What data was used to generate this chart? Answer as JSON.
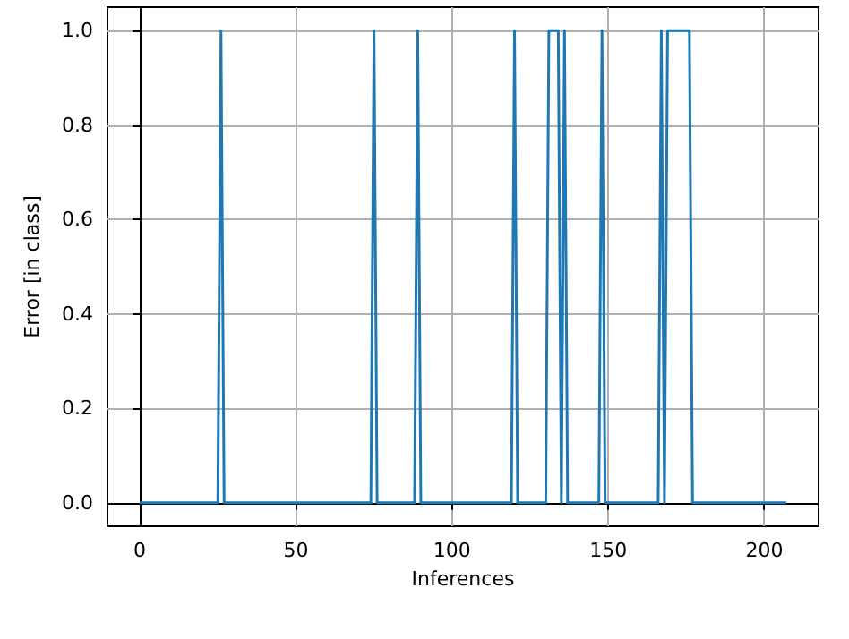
{
  "chart_data": {
    "type": "line",
    "xlabel": "Inferences",
    "ylabel": "Error [in class]",
    "x": [
      0,
      25,
      26,
      27,
      74,
      75,
      76,
      88,
      89,
      90,
      119,
      120,
      121,
      130,
      131,
      134,
      135,
      136,
      137,
      147,
      148,
      149,
      166,
      167,
      168,
      169,
      176,
      177,
      207
    ],
    "series": [
      {
        "color": "#1f77b4",
        "values": [
          0,
          0,
          1,
          0,
          0,
          1,
          0,
          0,
          1,
          0,
          0,
          1,
          0,
          0,
          1,
          1,
          0,
          1,
          0,
          0,
          1,
          0,
          0,
          1,
          0,
          1,
          1,
          0,
          0
        ]
      }
    ],
    "xlim": [
      -10.35,
      217.35
    ],
    "xticks": [
      0,
      50,
      100,
      150,
      200
    ],
    "ylim": [
      -0.05,
      1.05
    ],
    "yticks": [
      {
        "value": 0,
        "label": "0.0"
      },
      {
        "value": 0.2,
        "label": "0.2"
      },
      {
        "value": 0.4,
        "label": "0.4"
      },
      {
        "value": 0.6,
        "label": "0.6"
      },
      {
        "value": 0.8,
        "label": "0.8"
      },
      {
        "value": 1,
        "label": "1.0"
      }
    ],
    "grid": true,
    "marker": "none",
    "line_style": "solid"
  }
}
